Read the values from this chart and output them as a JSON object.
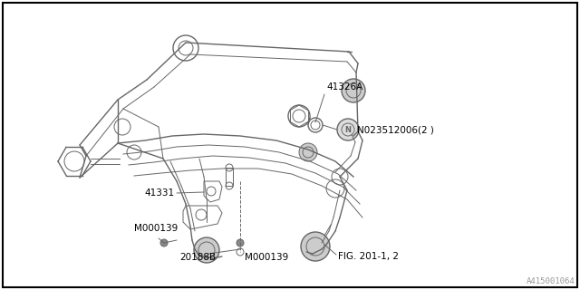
{
  "background_color": "#ffffff",
  "line_color": "#aaaaaa",
  "dark_line": "#666666",
  "figure_id": "A415001064",
  "fig_width": 6.4,
  "fig_height": 3.2,
  "dpi": 100,
  "labels": {
    "part1_text": "41326A",
    "part2_text": "N023512006(2 )",
    "part3_text": "41331",
    "part4_text": "M000139",
    "part5_text": "20188B",
    "part6_text": "M000139",
    "part7_text": "FIG. 201-1, 2"
  }
}
